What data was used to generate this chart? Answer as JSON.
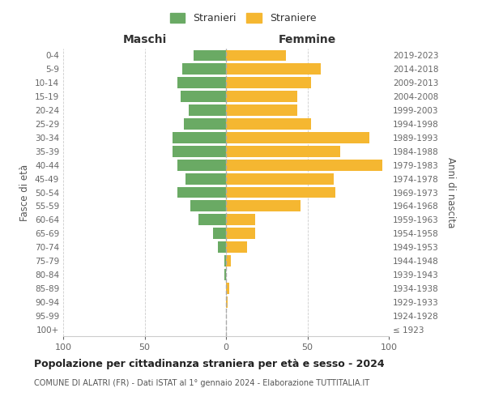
{
  "age_groups": [
    "100+",
    "95-99",
    "90-94",
    "85-89",
    "80-84",
    "75-79",
    "70-74",
    "65-69",
    "60-64",
    "55-59",
    "50-54",
    "45-49",
    "40-44",
    "35-39",
    "30-34",
    "25-29",
    "20-24",
    "15-19",
    "10-14",
    "5-9",
    "0-4"
  ],
  "birth_years": [
    "≤ 1923",
    "1924-1928",
    "1929-1933",
    "1934-1938",
    "1939-1943",
    "1944-1948",
    "1949-1953",
    "1954-1958",
    "1959-1963",
    "1964-1968",
    "1969-1973",
    "1974-1978",
    "1979-1983",
    "1984-1988",
    "1989-1993",
    "1994-1998",
    "1999-2003",
    "2004-2008",
    "2009-2013",
    "2014-2018",
    "2019-2023"
  ],
  "maschi": [
    0,
    0,
    0,
    0,
    1,
    1,
    5,
    8,
    17,
    22,
    30,
    25,
    30,
    33,
    33,
    26,
    23,
    28,
    30,
    27,
    20
  ],
  "femmine": [
    0,
    0,
    1,
    2,
    0,
    3,
    13,
    18,
    18,
    46,
    67,
    66,
    96,
    70,
    88,
    52,
    44,
    44,
    52,
    58,
    37
  ],
  "color_maschi": "#6aaa64",
  "color_femmine": "#f5b731",
  "title": "Popolazione per cittadinanza straniera per età e sesso - 2024",
  "subtitle": "COMUNE DI ALATRI (FR) - Dati ISTAT al 1° gennaio 2024 - Elaborazione TUTTITALIA.IT",
  "xlabel_left": "Maschi",
  "xlabel_right": "Femmine",
  "ylabel_left": "Fasce di età",
  "ylabel_right": "Anni di nascita",
  "legend_maschi": "Stranieri",
  "legend_femmine": "Straniere",
  "xlim": 100,
  "background_color": "#ffffff",
  "grid_color": "#cccccc"
}
